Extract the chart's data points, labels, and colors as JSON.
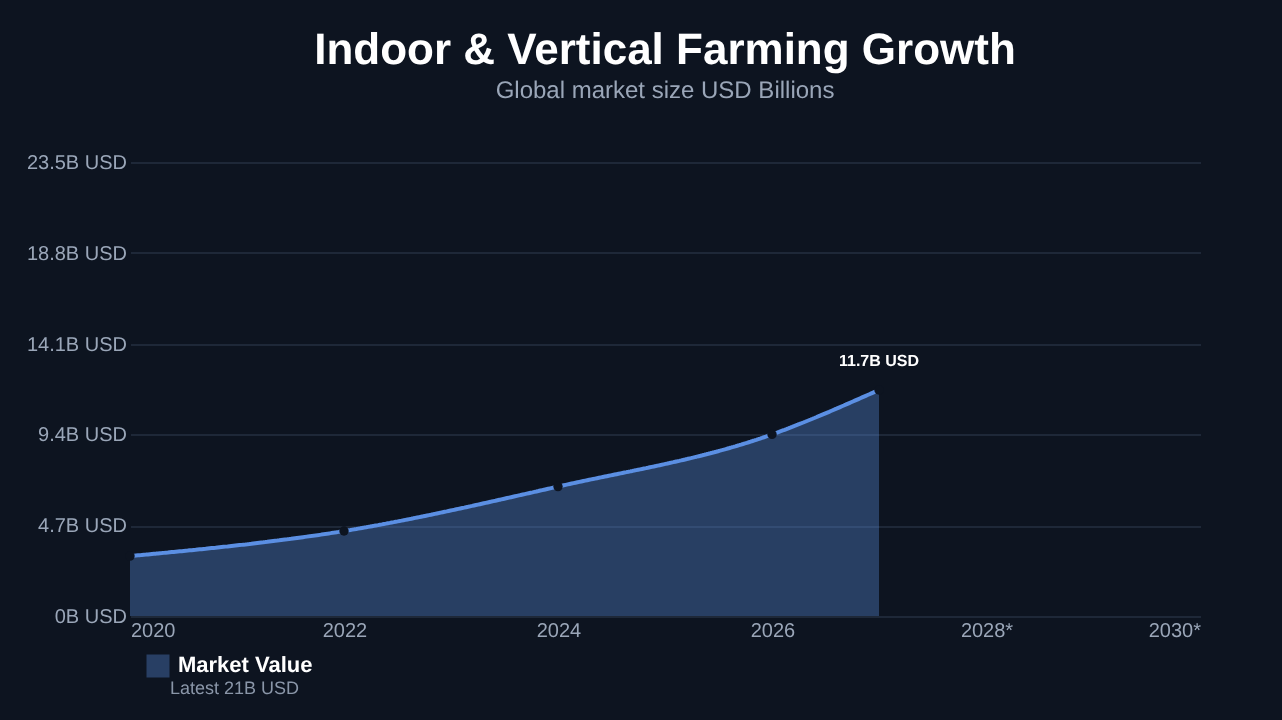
{
  "chart_data": {
    "type": "area",
    "title": "Indoor & Vertical Farming Growth",
    "subtitle": "Global market size USD Billions",
    "x": [
      2020,
      2022,
      2024,
      2026,
      2027
    ],
    "series": [
      {
        "name": "Market Value",
        "color": "#5b8fe3",
        "values": [
          3.1,
          4.4,
          6.7,
          9.4,
          11.7
        ],
        "value_labels": [
          null,
          null,
          null,
          null,
          "11.7B USD"
        ]
      }
    ],
    "xlim": [
      2020,
      2030
    ],
    "xticks": [
      2020,
      2022,
      2024,
      2026,
      {
        "value": 2028,
        "label": "2028*"
      },
      {
        "value": 2030,
        "label": "2030*"
      }
    ],
    "ylim": [
      0,
      23.5
    ],
    "yticks": [
      {
        "value": 0,
        "label": "0B USD"
      },
      {
        "value": 4.7,
        "label": "4.7B USD"
      },
      {
        "value": 9.4,
        "label": "9.4B USD"
      },
      {
        "value": 14.1,
        "label": "14.1B USD"
      },
      {
        "value": 18.8,
        "label": "18.8B USD"
      },
      {
        "value": 23.5,
        "label": "23.5B USD"
      }
    ],
    "grid": "y",
    "legend": "bottom left",
    "marker": "circle",
    "line_style": "solid",
    "annotations": [
      "Latest 21B USD"
    ]
  }
}
